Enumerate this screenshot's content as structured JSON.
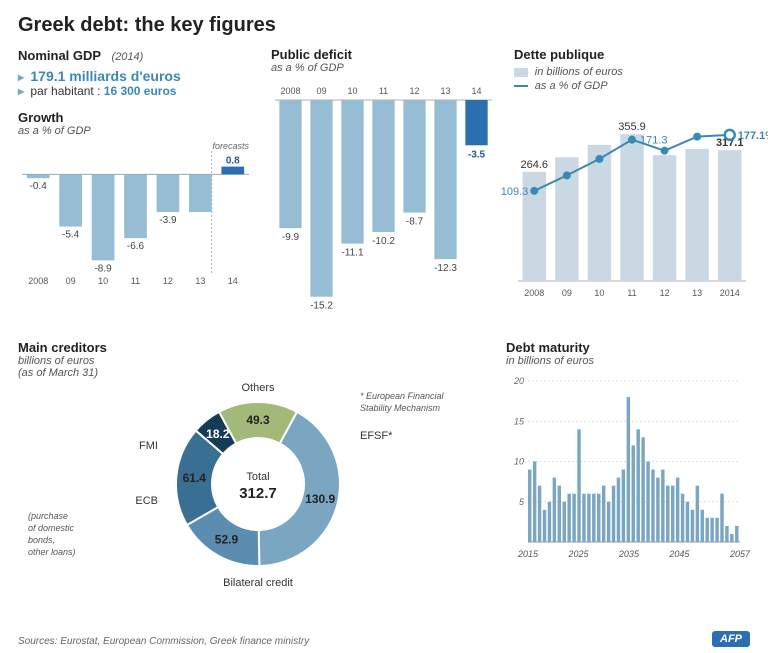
{
  "title": "Greek debt: the key figures",
  "colors": {
    "light_blue": "#97bdd4",
    "mid_blue": "#3a88b4",
    "dark_blue": "#1f5c84",
    "navy": "#163b56",
    "olive": "#a3b97a",
    "gray": "#888888",
    "grid": "#d8d8d8",
    "text": "#333333",
    "bg": "#ffffff"
  },
  "gdp": {
    "title": "Nominal GDP",
    "year": "(2014)",
    "line1_prefix": "",
    "line1": "179.1 milliards d'euros",
    "line2_prefix": "par habitant : ",
    "line2": "16 300 euros"
  },
  "growth": {
    "title": "Growth",
    "sub": "as a % of GDP",
    "forecasts_label": "forecasts",
    "categories": [
      "2008",
      "09",
      "10",
      "11",
      "12",
      "13",
      "14"
    ],
    "values": [
      -0.4,
      -5.4,
      -8.9,
      -6.6,
      -3.9,
      -3.9,
      0.8
    ],
    "show_labels": [
      true,
      true,
      true,
      true,
      true,
      false,
      true
    ],
    "bar_light": "#97bdd4",
    "bar_dark": "#2a6fb0",
    "ymin": -10,
    "ymax": 2
  },
  "deficit": {
    "title": "Public deficit",
    "sub": "as a % of GDP",
    "categories": [
      "2008",
      "09",
      "10",
      "11",
      "12",
      "13",
      "14"
    ],
    "values": [
      -9.9,
      -15.2,
      -11.1,
      -10.2,
      -8.7,
      -12.3,
      -3.5
    ],
    "bar_light": "#97bdd4",
    "bar_dark": "#2a6fb0",
    "ymin": -17,
    "ymax": 0
  },
  "dette": {
    "title": "Dette publique",
    "legend_bars": "in billions of euros",
    "legend_line": "as a % of GDP",
    "categories": [
      "2008",
      "09",
      "10",
      "11",
      "12",
      "13",
      "2014"
    ],
    "bars": [
      264.6,
      300,
      330,
      355.9,
      305,
      320,
      317.1
    ],
    "line": [
      109.3,
      128,
      148,
      171.3,
      158,
      175,
      177.1
    ],
    "bar_labels": {
      "0": "264.6",
      "3": "355.9",
      "6": "317.1"
    },
    "line_labels": {
      "0": "109.3",
      "3": "171.3",
      "6": "177.1"
    },
    "line_pct_suffix": "%",
    "bar_color": "#c9d8e3",
    "line_color": "#3a88b4",
    "bars_max": 400,
    "line_max": 200
  },
  "creditors": {
    "title": "Main creditors",
    "sub1": "billions of euros",
    "sub2": "(as of March 31)",
    "center_label": "Total",
    "center_value": "312.7",
    "note_left": "(purchase\nof domestic\nbonds,\nother loans)",
    "note_right": "* European Financial\nStability Mechanism",
    "slices": [
      {
        "label": "EFSF*",
        "value": 130.9,
        "color": "#7aa6c2"
      },
      {
        "label": "Bilateral credit",
        "value": 52.9,
        "color": "#5a8db0"
      },
      {
        "label": "ECB",
        "value": 61.4,
        "color": "#3a6f94"
      },
      {
        "label": "FMI",
        "value": 18.2,
        "color": "#163b56"
      },
      {
        "label": "Others",
        "value": 49.3,
        "color": "#a3b97a"
      }
    ]
  },
  "maturity": {
    "title": "Debt maturity",
    "sub": "in billions of euros",
    "ymax": 20,
    "yticks": [
      5,
      10,
      15,
      20
    ],
    "xstart": 2015,
    "xend": 2057,
    "xticks": [
      2015,
      2025,
      2035,
      2045,
      2057
    ],
    "values": [
      9,
      10,
      7,
      4,
      5,
      8,
      7,
      5,
      6,
      6,
      14,
      6,
      6,
      6,
      6,
      7,
      5,
      7,
      8,
      9,
      18,
      12,
      14,
      13,
      10,
      9,
      8,
      9,
      7,
      7,
      8,
      6,
      5,
      4,
      7,
      4,
      3,
      3,
      3,
      6,
      2,
      1,
      2
    ],
    "bar_color": "#7aa6c2",
    "grid_color": "#d8d8d8"
  },
  "sources": "Sources:  Eurostat, European Commission, Greek finance ministry",
  "logo": "AFP"
}
